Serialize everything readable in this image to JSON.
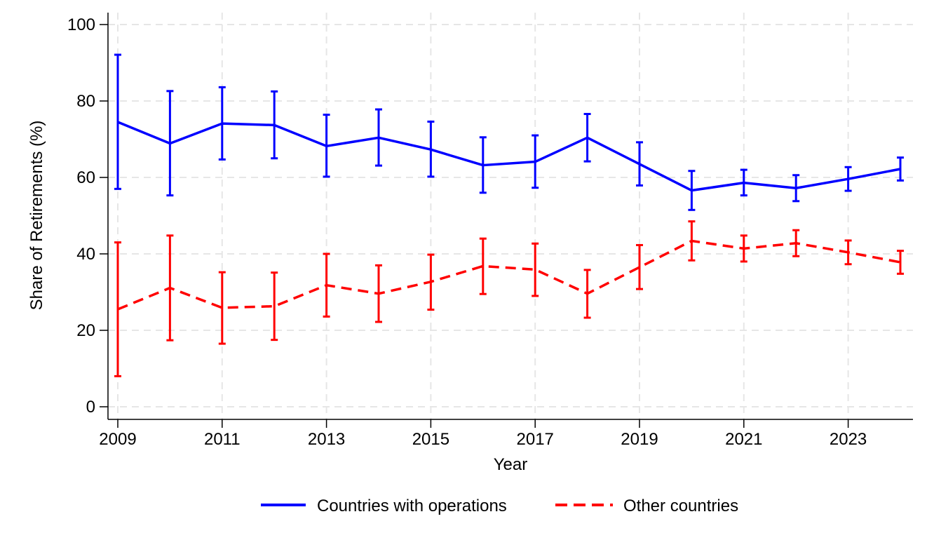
{
  "chart_data": {
    "type": "line",
    "xlabel": "Year",
    "ylabel": "Share of Retirements (%)",
    "x": [
      2009,
      2010,
      2011,
      2012,
      2013,
      2014,
      2015,
      2016,
      2017,
      2018,
      2019,
      2020,
      2021,
      2022,
      2023,
      2024
    ],
    "xticks": [
      2009,
      2011,
      2013,
      2015,
      2017,
      2019,
      2021,
      2023
    ],
    "xtick_labels": [
      "2009",
      "2011",
      "2013",
      "2015",
      "2017",
      "2019",
      "2021",
      "2023"
    ],
    "yticks": [
      0,
      20,
      40,
      60,
      80,
      100
    ],
    "ytick_labels": [
      "0",
      "20",
      "40",
      "60",
      "80",
      "100"
    ],
    "xlim": [
      2009,
      2024
    ],
    "ylim": [
      -3,
      103
    ],
    "grid": true,
    "legend_position": "bottom",
    "series": [
      {
        "name": "Countries with operations",
        "color": "#0000ff",
        "dash": "solid",
        "values": [
          74.5,
          68.9,
          74.1,
          73.7,
          68.2,
          70.4,
          67.3,
          63.2,
          64.1,
          70.4,
          63.5,
          56.6,
          58.6,
          57.2,
          59.6,
          62.2
        ],
        "ci_low": [
          57.0,
          55.3,
          64.7,
          65.0,
          60.2,
          63.1,
          60.2,
          56.0,
          57.3,
          64.2,
          57.9,
          51.5,
          55.3,
          53.8,
          56.5,
          59.2
        ],
        "ci_high": [
          92.1,
          82.6,
          83.6,
          82.5,
          76.4,
          77.8,
          74.6,
          70.5,
          71.0,
          76.6,
          69.2,
          61.7,
          62.0,
          60.6,
          62.7,
          65.2
        ]
      },
      {
        "name": "Other countries",
        "color": "#ff0000",
        "dash": "dashed",
        "values": [
          25.5,
          31.1,
          25.9,
          26.3,
          31.8,
          29.6,
          32.7,
          36.8,
          35.9,
          29.6,
          36.5,
          43.4,
          41.4,
          42.8,
          40.4,
          37.8
        ],
        "ci_low": [
          8.0,
          17.4,
          16.5,
          17.5,
          23.6,
          22.2,
          25.4,
          29.5,
          29.0,
          23.3,
          30.8,
          38.3,
          38.0,
          39.4,
          37.3,
          34.8
        ],
        "ci_high": [
          43.0,
          44.8,
          35.2,
          35.1,
          40.0,
          37.0,
          39.8,
          44.0,
          42.7,
          35.8,
          42.3,
          48.5,
          44.8,
          46.2,
          43.5,
          40.8
        ]
      }
    ]
  }
}
